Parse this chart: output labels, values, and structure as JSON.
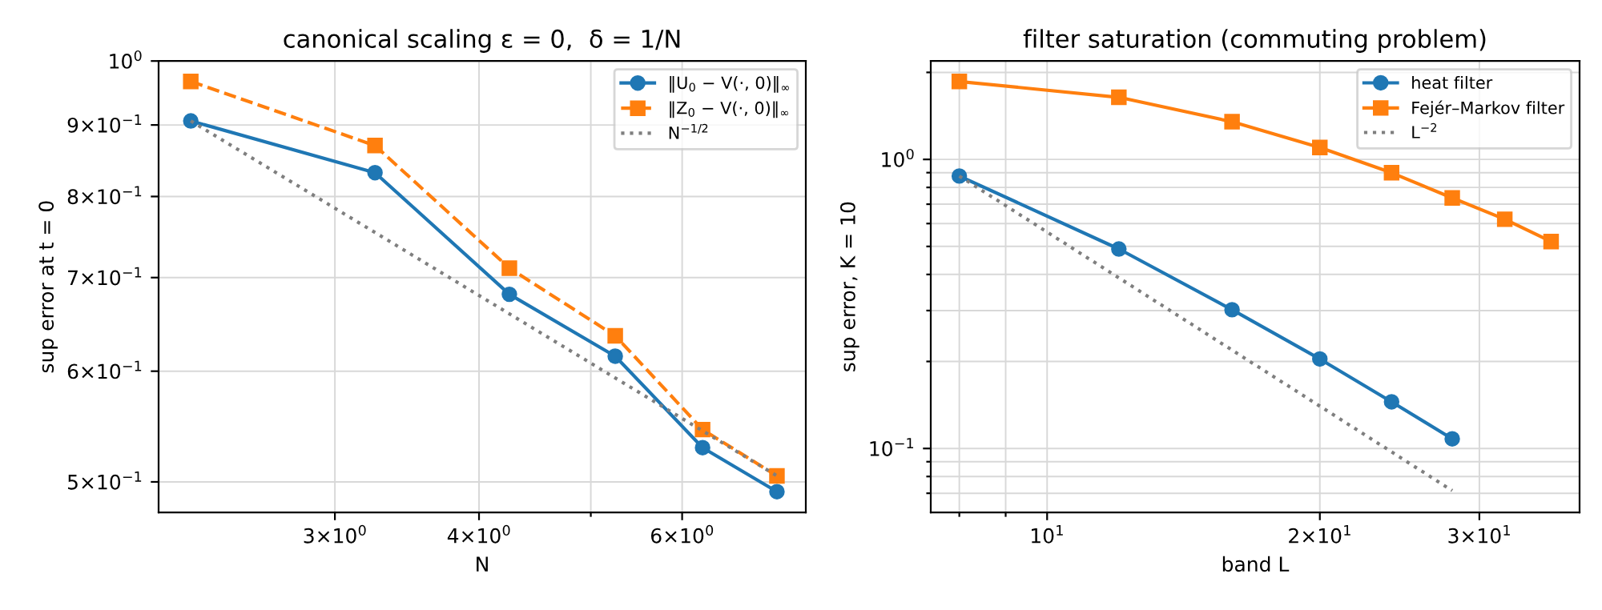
{
  "chart_data": [
    {
      "type": "line",
      "title": "canonical scaling ε = 0,  δ = 1/N",
      "xlabel": "N",
      "ylabel": "sup error at t = 0",
      "log": "xy",
      "grid": true,
      "legend": "top right",
      "xlim": [
        2.11,
        7.68
      ],
      "ylim": [
        0.4755,
        1.0
      ],
      "xticks": [
        {
          "value": 3,
          "label": "3×10$^{0}$"
        },
        {
          "value": 4,
          "label": "4×10$^{0}$"
        },
        {
          "value": 5,
          "label": null
        },
        {
          "value": 6,
          "label": "6×10$^{0}$"
        }
      ],
      "yticks": [
        {
          "value": 0.5,
          "label": "5×10$^{−1}$"
        },
        {
          "value": 0.6,
          "label": "6×10$^{−1}$"
        },
        {
          "value": 0.7,
          "label": "7×10$^{−1}$"
        },
        {
          "value": 0.8,
          "label": "8×10$^{−1}$"
        },
        {
          "value": 0.9,
          "label": "9×10$^{−1}$"
        },
        {
          "value": 1,
          "label": "10$^{0}$"
        }
      ],
      "series": [
        {
          "name": "‖U$_{0}$ − V(·, 0)‖$_{∞}$",
          "color": "#1f77b4",
          "marker": "circle",
          "line_style": "solid",
          "x": [
            2.25,
            3.25,
            4.25,
            5.25,
            6.25,
            7.25
          ],
          "values": [
            0.906,
            0.832,
            0.681,
            0.615,
            0.529,
            0.492
          ]
        },
        {
          "name": "‖Z$_{0}$ − V(·, 0)‖$_{∞}$",
          "color": "#ff7f0e",
          "marker": "square",
          "line_style": "dashed",
          "x": [
            2.25,
            3.25,
            4.25,
            5.25,
            6.25,
            7.25
          ],
          "values": [
            0.967,
            0.87,
            0.711,
            0.636,
            0.545,
            0.505
          ]
        },
        {
          "name": "N$^{−1/2}$",
          "color": "#7f7f7f",
          "marker": "none",
          "line_style": "dotted",
          "x": [
            2.25,
            7.25
          ],
          "values": [
            0.906,
            0.505
          ]
        }
      ]
    },
    {
      "type": "line",
      "title": "filter saturation (commuting problem)",
      "xlabel": "band L",
      "ylabel": "sup error, K = 10",
      "log": "xy",
      "grid": true,
      "legend": "top right",
      "xlim": [
        7.44,
        38.7
      ],
      "ylim": [
        0.0601,
        2.19
      ],
      "xticks": [
        {
          "value": 8,
          "label": null
        },
        {
          "value": 9,
          "label": null
        },
        {
          "value": 10,
          "label": "10$^{1}$"
        },
        {
          "value": 20,
          "label": "2×10$^{1}$"
        },
        {
          "value": 30,
          "label": "3×10$^{1}$"
        }
      ],
      "yticks": [
        {
          "value": 0.07,
          "label": null
        },
        {
          "value": 0.08,
          "label": null
        },
        {
          "value": 0.09,
          "label": null
        },
        {
          "value": 0.1,
          "label": "10$^{−1}$"
        },
        {
          "value": 0.2,
          "label": null
        },
        {
          "value": 0.3,
          "label": null
        },
        {
          "value": 0.4,
          "label": null
        },
        {
          "value": 0.5,
          "label": null
        },
        {
          "value": 0.6,
          "label": null
        },
        {
          "value": 0.7,
          "label": null
        },
        {
          "value": 0.8,
          "label": null
        },
        {
          "value": 0.9,
          "label": null
        },
        {
          "value": 1,
          "label": "10$^{0}$"
        },
        {
          "value": 2,
          "label": null
        }
      ],
      "series": [
        {
          "name": "heat filter",
          "color": "#1f77b4",
          "marker": "circle",
          "line_style": "solid",
          "x": [
            8,
            12,
            16,
            20,
            24,
            28
          ],
          "values": [
            0.876,
            0.49,
            0.302,
            0.204,
            0.145,
            0.108
          ]
        },
        {
          "name": "Fejér–Markov filter",
          "color": "#ff7f0e",
          "marker": "square",
          "line_style": "solid",
          "x": [
            8,
            12,
            16,
            20,
            24,
            28,
            32,
            36
          ],
          "values": [
            1.86,
            1.64,
            1.35,
            1.1,
            0.899,
            0.736,
            0.621,
            0.52
          ]
        },
        {
          "name": "L$^{−2}$",
          "color": "#7f7f7f",
          "marker": "none",
          "line_style": "dotted",
          "x": [
            8,
            28
          ],
          "values": [
            0.876,
            0.0715
          ]
        }
      ]
    }
  ]
}
